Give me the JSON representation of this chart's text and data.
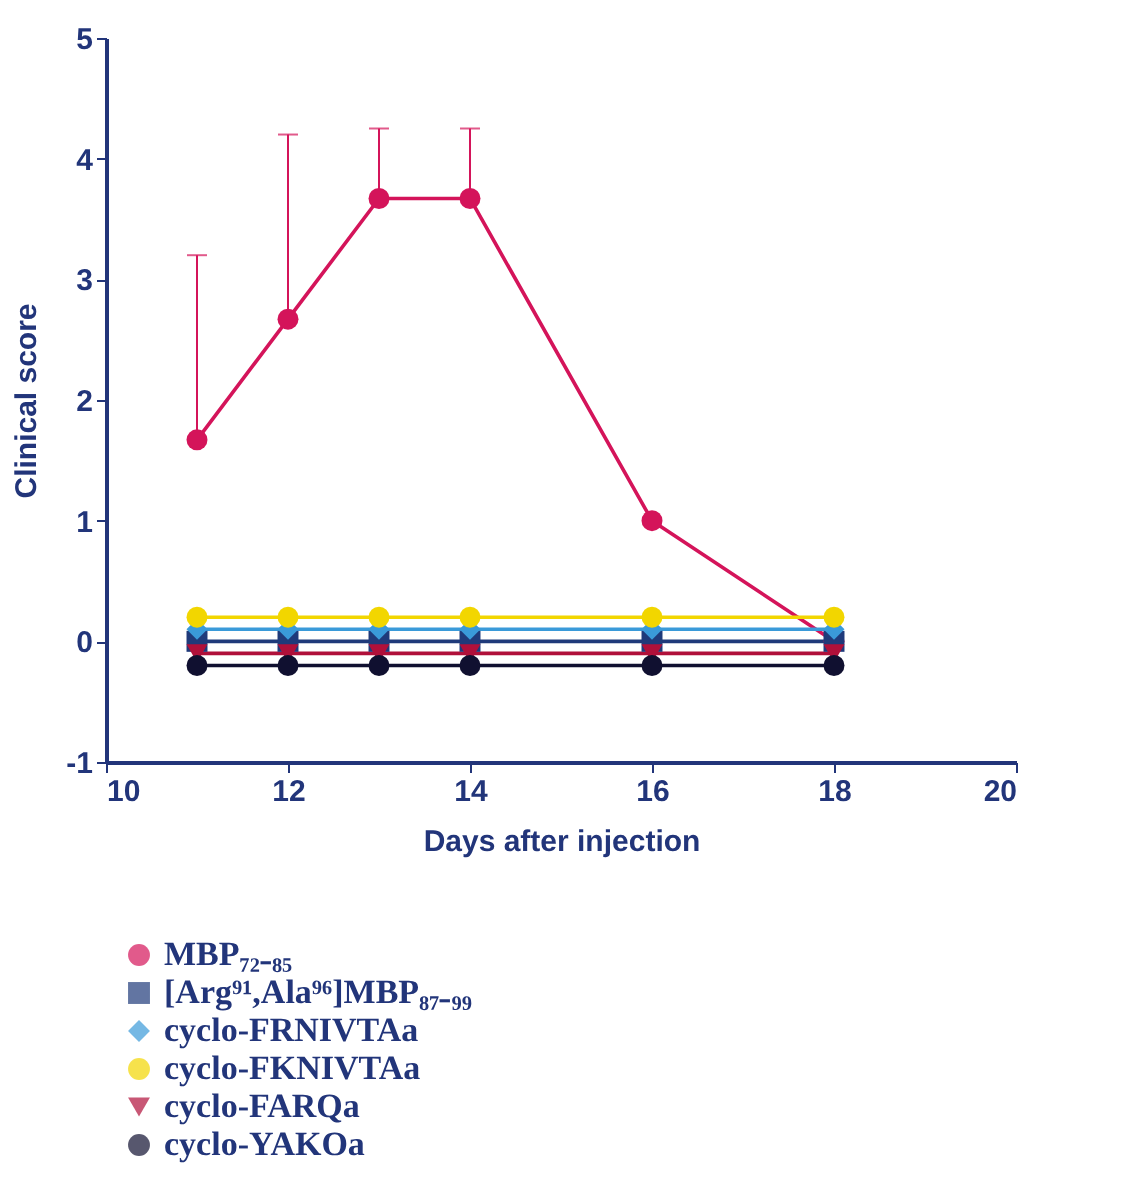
{
  "chart_data": {
    "type": "line",
    "xlabel": "Days after injection",
    "ylabel": "Clinical score",
    "x": [
      11,
      12,
      13,
      14,
      16,
      18
    ],
    "series": [
      {
        "name": "MBP₇₂₋₈₅",
        "color": "#d4145a",
        "marker": "circle",
        "values": [
          1.67,
          2.67,
          3.67,
          3.67,
          1.0,
          0.0
        ],
        "errors": [
          [
            1.67,
            3.2
          ],
          [
            2.67,
            4.2
          ],
          [
            3.67,
            4.25
          ],
          [
            3.67,
            4.25
          ],
          null,
          null
        ]
      },
      {
        "name": "[Arg⁹¹,Ala⁹⁶]MBP₈₇₋₉₉",
        "color": "#1f3a7a",
        "marker": "square",
        "values": [
          0.0,
          0.0,
          0.0,
          0.0,
          0.0,
          0.0
        ]
      },
      {
        "name": "cyclo-FRNIVTAa",
        "color": "#3a9ad9",
        "marker": "diamond",
        "values": [
          0.1,
          0.1,
          0.1,
          0.1,
          0.1,
          0.1
        ]
      },
      {
        "name": "cyclo-FKNIVTAa",
        "color": "#f2d600",
        "marker": "circle",
        "values": [
          0.2,
          0.2,
          0.2,
          0.2,
          0.2,
          0.2
        ]
      },
      {
        "name": "cyclo-FARQa",
        "color": "#b0103a",
        "marker": "triangle",
        "values": [
          -0.1,
          -0.1,
          -0.1,
          -0.1,
          -0.1,
          -0.1
        ]
      },
      {
        "name": "cyclo-YAKOa",
        "color": "#101030",
        "marker": "circle",
        "values": [
          -0.2,
          -0.2,
          -0.2,
          -0.2,
          -0.2,
          -0.2
        ]
      }
    ],
    "xlim": [
      10,
      20
    ],
    "xticks": [
      10,
      12,
      14,
      16,
      18,
      20
    ],
    "ylim": [
      -1,
      5
    ],
    "yticks": [
      -1,
      0,
      1,
      2,
      3,
      4,
      5
    ],
    "grid": false,
    "legend": "bottom left",
    "line_style": "solid"
  }
}
